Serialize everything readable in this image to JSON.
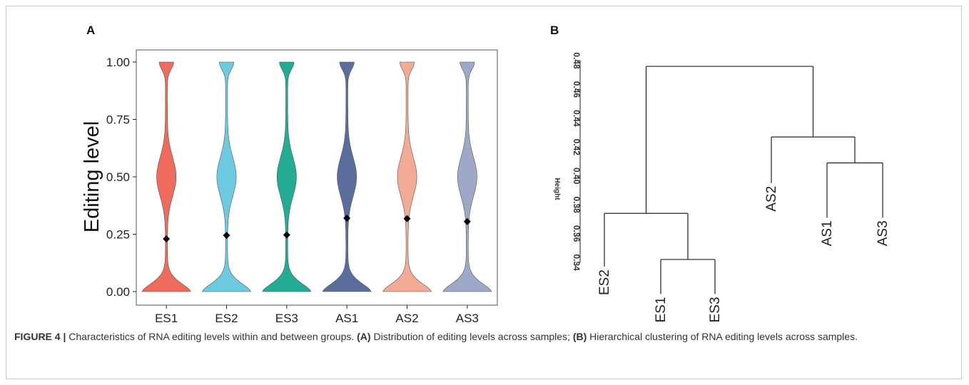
{
  "panels": {
    "a_label": "A",
    "b_label": "B"
  },
  "colors": {
    "ES1": "#ef6b5b",
    "ES2": "#6ccbe0",
    "ES3": "#22ac94",
    "AS1": "#5a6d9d",
    "AS2": "#f4aa95",
    "AS3": "#9ea8c8",
    "axis": "#222222"
  },
  "chart_data": [
    {
      "type": "violin",
      "ylabel": "Editing level",
      "xlabel": "",
      "categories": [
        "ES1",
        "ES2",
        "ES3",
        "AS1",
        "AS2",
        "AS3"
      ],
      "ylim": [
        0,
        1
      ],
      "yticks": [
        "0.00",
        "0.25",
        "0.50",
        "0.75",
        "1.00"
      ],
      "mean_markers": [
        0.23,
        0.245,
        0.247,
        0.32,
        0.318,
        0.305
      ],
      "grid": false
    },
    {
      "type": "dendrogram",
      "ylabel": "Height",
      "ylim": [
        0.34,
        0.48
      ],
      "yticks": [
        "0.34",
        "0.36",
        "0.38",
        "0.40",
        "0.42",
        "0.44",
        "0.46",
        "0.48"
      ],
      "leaves": [
        "ES2",
        "ES1",
        "ES3",
        "AS2",
        "AS1",
        "AS3"
      ],
      "merges": [
        {
          "left": "ES1",
          "right": "ES3",
          "height": 0.342
        },
        {
          "left": "ES2",
          "right": "ES1+ES3",
          "height": 0.374
        },
        {
          "left": "AS1",
          "right": "AS3",
          "height": 0.409
        },
        {
          "left": "AS2",
          "right": "AS1+AS3",
          "height": 0.427
        },
        {
          "left": "ES cluster",
          "right": "AS cluster",
          "height": 0.476
        }
      ]
    }
  ],
  "caption": {
    "figure": "FIGURE 4 |",
    "text1": " Characteristics of RNA editing levels within and between groups. ",
    "a": "(A)",
    "text2": " Distribution of editing levels across samples; ",
    "b": "(B)",
    "text3": " Hierarchical clustering of RNA editing levels across samples."
  }
}
